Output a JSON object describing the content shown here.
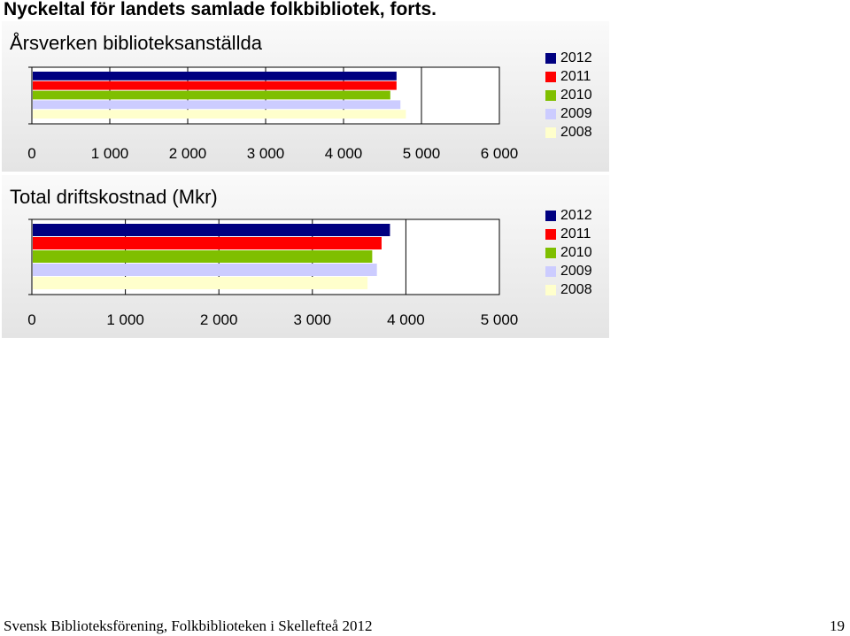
{
  "page": {
    "title": "Nyckeltal för landets samlade folkbibliotek, forts.",
    "footer": "Svensk Biblioteksförening, Folkbiblioteken i Skellefteå 2012",
    "page_number": "19"
  },
  "colors": {
    "2012": "#000080",
    "2011": "#ff0000",
    "2010": "#7fbf00",
    "2009": "#ccccff",
    "2008": "#ffffcc"
  },
  "chart_data": [
    {
      "type": "bar",
      "orientation": "horizontal",
      "title": "Årsverken biblioteksanställda",
      "xlabel": "",
      "ylabel": "",
      "xlim": [
        0,
        6000
      ],
      "xticks": [
        0,
        1000,
        2000,
        3000,
        4000,
        5000,
        6000
      ],
      "tick_labels": [
        "0",
        "1 000",
        "2 000",
        "3 000",
        "4 000",
        "5 000",
        "6 000"
      ],
      "grid": true,
      "legend_position": "right",
      "series": [
        {
          "name": "2012",
          "values": [
            4680
          ]
        },
        {
          "name": "2011",
          "values": [
            4680
          ]
        },
        {
          "name": "2010",
          "values": [
            4600
          ]
        },
        {
          "name": "2009",
          "values": [
            4730
          ]
        },
        {
          "name": "2008",
          "values": [
            4800
          ]
        }
      ]
    },
    {
      "type": "bar",
      "orientation": "horizontal",
      "title": "Total driftskostnad (Mkr)",
      "xlabel": "",
      "ylabel": "",
      "xlim": [
        0,
        5000
      ],
      "xticks": [
        0,
        1000,
        2000,
        3000,
        4000,
        5000
      ],
      "tick_labels": [
        "0",
        "1 000",
        "2 000",
        "3 000",
        "4 000",
        "5 000"
      ],
      "grid": true,
      "legend_position": "right",
      "series": [
        {
          "name": "2012",
          "values": [
            3830
          ]
        },
        {
          "name": "2011",
          "values": [
            3740
          ]
        },
        {
          "name": "2010",
          "values": [
            3640
          ]
        },
        {
          "name": "2009",
          "values": [
            3690
          ]
        },
        {
          "name": "2008",
          "values": [
            3590
          ]
        }
      ]
    }
  ]
}
